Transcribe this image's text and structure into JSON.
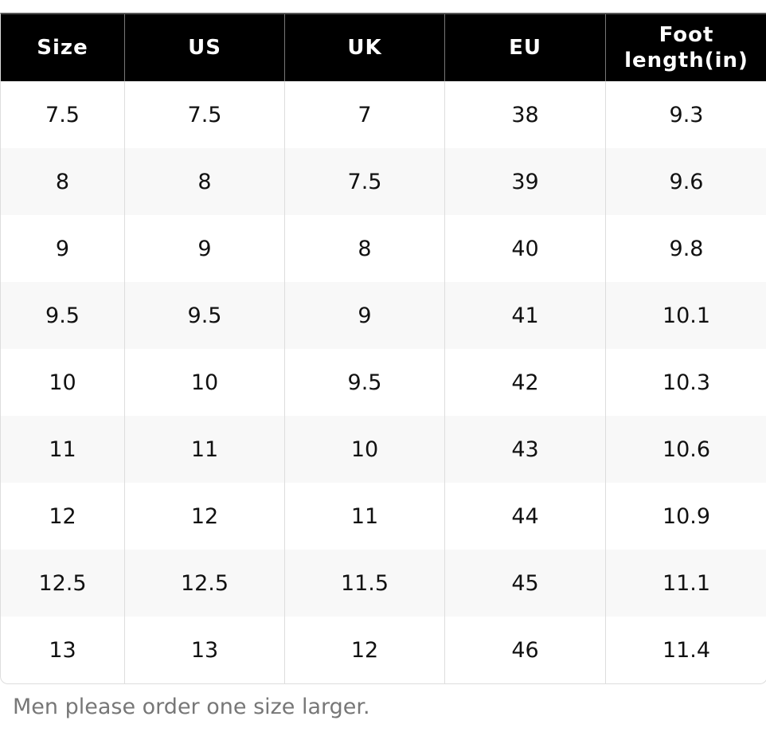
{
  "table": {
    "header": [
      "Size",
      "US",
      "UK",
      "EU",
      "Foot length(in)"
    ],
    "rows": [
      [
        "7.5",
        "7.5",
        "7",
        "38",
        "9.3"
      ],
      [
        "8",
        "8",
        "7.5",
        "39",
        "9.6"
      ],
      [
        "9",
        "9",
        "8",
        "40",
        "9.8"
      ],
      [
        "9.5",
        "9.5",
        "9",
        "41",
        "10.1"
      ],
      [
        "10",
        "10",
        "9.5",
        "42",
        "10.3"
      ],
      [
        "11",
        "11",
        "10",
        "43",
        "10.6"
      ],
      [
        "12",
        "12",
        "11",
        "44",
        "10.9"
      ],
      [
        "12.5",
        "12.5",
        "11.5",
        "45",
        "11.1"
      ],
      [
        "13",
        "13",
        "12",
        "46",
        "11.4"
      ]
    ]
  },
  "note": "Men please order one size larger."
}
